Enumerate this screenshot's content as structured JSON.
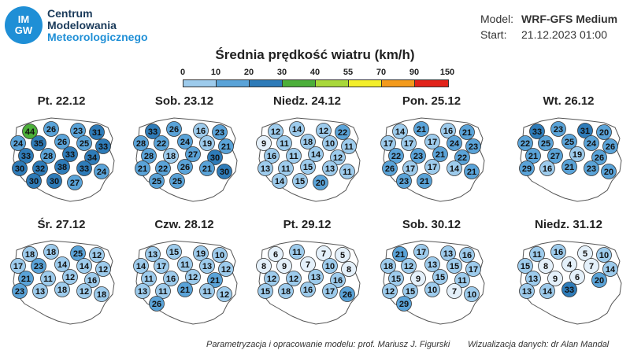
{
  "logo": {
    "badge_line1": "IM",
    "badge_line2": "GW",
    "line1": "Centrum",
    "line2": "Modelowania",
    "line3": "Meteorologicznego"
  },
  "model_info": {
    "model_label": "Model:",
    "model_value": "WRF-GFS Medium",
    "start_label": "Start:",
    "start_value": "21.12.2023 01:00"
  },
  "title": "Średnia prędkość wiatru (km/h)",
  "legend": {
    "ticks": [
      "0",
      "10",
      "20",
      "30",
      "40",
      "55",
      "70",
      "90",
      "150"
    ],
    "colors": [
      "#e4f0fa",
      "#9dcbec",
      "#5aa3d8",
      "#2e7bb8",
      "#4caf3a",
      "#a8d83a",
      "#f3ee2a",
      "#f39a1c",
      "#e2231a"
    ]
  },
  "credits": {
    "left": "Parametryzacja i opracowanie modelu: prof. Mariusz J. Figurski",
    "right": "Wizualizacja danych: dr Alan Mandal"
  },
  "maps": [
    {
      "title": "Pt. 22.12",
      "values": [
        44,
        26,
        23,
        31,
        24,
        35,
        26,
        25,
        33,
        33,
        28,
        33,
        34,
        30,
        32,
        38,
        33,
        24,
        30,
        30,
        27
      ]
    },
    {
      "title": "Sob. 23.12",
      "values": [
        33,
        26,
        16,
        23,
        28,
        22,
        24,
        19,
        21,
        28,
        18,
        27,
        30,
        21,
        22,
        26,
        21,
        30,
        25,
        25
      ]
    },
    {
      "title": "Niedz. 24.12",
      "values": [
        12,
        14,
        12,
        22,
        9,
        11,
        18,
        10,
        11,
        16,
        11,
        14,
        12,
        13,
        11,
        15,
        13,
        11,
        14,
        15,
        20
      ]
    },
    {
      "title": "Pon. 25.12",
      "values": [
        14,
        21,
        16,
        21,
        17,
        17,
        17,
        24,
        23,
        22,
        23,
        21,
        22,
        26,
        17,
        17,
        14,
        21,
        23,
        21
      ]
    },
    {
      "title": "Wt. 26.12",
      "values": [
        33,
        23,
        31,
        20,
        22,
        25,
        25,
        24,
        26,
        21,
        27,
        19,
        26,
        29,
        16,
        21,
        23,
        20
      ]
    },
    {
      "title": "Śr. 27.12",
      "values": [
        18,
        18,
        25,
        12,
        17,
        23,
        14,
        14,
        12,
        21,
        11,
        12,
        16,
        23,
        13,
        18,
        12,
        18
      ]
    },
    {
      "title": "Czw. 28.12",
      "values": [
        13,
        15,
        19,
        10,
        14,
        17,
        11,
        13,
        12,
        11,
        16,
        12,
        21,
        13,
        11,
        21,
        11,
        12,
        26
      ]
    },
    {
      "title": "Pt. 29.12",
      "values": [
        6,
        11,
        7,
        5,
        8,
        9,
        7,
        10,
        8,
        12,
        12,
        13,
        16,
        15,
        18,
        16,
        17,
        26
      ]
    },
    {
      "title": "Sob. 30.12",
      "values": [
        21,
        17,
        13,
        16,
        18,
        12,
        13,
        15,
        17,
        15,
        9,
        15,
        11,
        12,
        15,
        10,
        7,
        10,
        29
      ]
    },
    {
      "title": "Niedz. 31.12",
      "values": [
        11,
        16,
        5,
        10,
        15,
        8,
        4,
        7,
        14,
        13,
        9,
        6,
        20,
        13,
        14,
        33
      ]
    }
  ]
}
